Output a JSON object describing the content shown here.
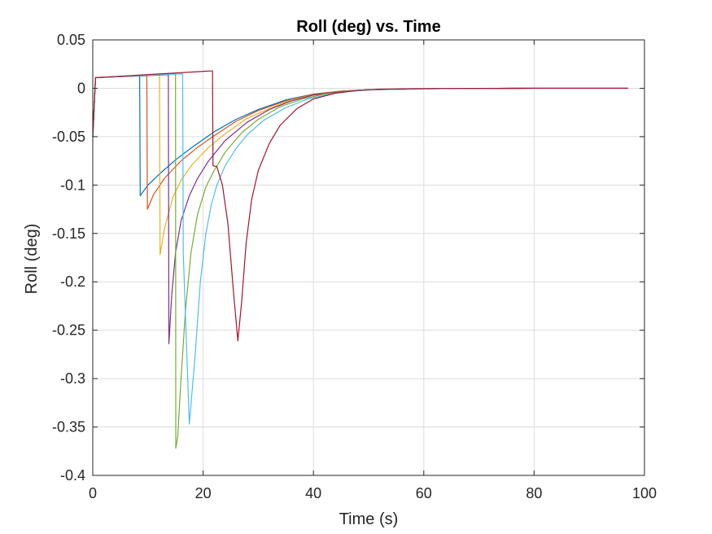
{
  "chart_data": {
    "type": "line",
    "title": "Roll (deg) vs. Time",
    "xlabel": "Time (s)",
    "ylabel": "Roll (deg)",
    "xlim": [
      0,
      100
    ],
    "ylim": [
      -0.4,
      0.05
    ],
    "xticks": [
      0,
      20,
      40,
      60,
      80,
      100
    ],
    "xtick_labels": [
      "0",
      "20",
      "40",
      "60",
      "80",
      "100"
    ],
    "yticks": [
      0.05,
      0,
      -0.05,
      -0.1,
      -0.15,
      -0.2,
      -0.25,
      -0.3,
      -0.35,
      -0.4
    ],
    "ytick_labels": [
      "0.05",
      "0",
      "-0.05",
      "-0.1",
      "-0.15",
      "-0.2",
      "-0.25",
      "-0.3",
      "-0.35",
      "-0.4"
    ],
    "grid": true,
    "series": [
      {
        "color": "#0072BD",
        "x": [
          0,
          0.5,
          8.5,
          8.6,
          10,
          12,
          15,
          18,
          22,
          26,
          30,
          35,
          40,
          45,
          50,
          60,
          70,
          80,
          90,
          97
        ],
        "y": [
          -0.05,
          0.011,
          0.013,
          -0.111,
          -0.1,
          -0.089,
          -0.074,
          -0.061,
          -0.045,
          -0.032,
          -0.022,
          -0.012,
          -0.006,
          -0.003,
          -0.0015,
          -0.0005,
          -0.0002,
          0,
          0,
          0
        ]
      },
      {
        "color": "#D95319",
        "x": [
          0,
          0.5,
          9.8,
          9.9,
          11,
          13,
          16,
          19,
          22,
          26,
          30,
          35,
          40,
          45,
          50,
          60,
          70,
          80,
          90,
          97
        ],
        "y": [
          -0.05,
          0.011,
          0.013,
          -0.125,
          -0.11,
          -0.093,
          -0.075,
          -0.061,
          -0.049,
          -0.034,
          -0.023,
          -0.013,
          -0.006,
          -0.003,
          -0.0015,
          -0.0005,
          -0.0002,
          0,
          0,
          0
        ]
      },
      {
        "color": "#EDB120",
        "x": [
          0,
          0.5,
          12.1,
          12.2,
          13,
          14.5,
          16,
          18,
          21,
          24,
          28,
          32,
          36,
          40,
          45,
          50,
          60,
          70,
          80,
          90,
          97
        ],
        "y": [
          -0.05,
          0.011,
          0.014,
          -0.172,
          -0.145,
          -0.113,
          -0.095,
          -0.079,
          -0.061,
          -0.047,
          -0.031,
          -0.021,
          -0.012,
          -0.007,
          -0.0035,
          -0.0015,
          -0.0005,
          -0.0002,
          0,
          0,
          0
        ]
      },
      {
        "color": "#7E2F8E",
        "x": [
          0,
          0.5,
          13.7,
          13.8,
          14.3,
          15,
          16,
          17.5,
          19,
          21,
          24,
          28,
          32,
          36,
          40,
          45,
          50,
          60,
          70,
          80,
          90,
          97
        ],
        "y": [
          -0.05,
          0.011,
          0.014,
          -0.264,
          -0.215,
          -0.17,
          -0.137,
          -0.111,
          -0.093,
          -0.075,
          -0.054,
          -0.035,
          -0.022,
          -0.013,
          -0.007,
          -0.0035,
          -0.0015,
          -0.0005,
          -0.0002,
          0,
          0,
          0
        ]
      },
      {
        "color": "#77AC30",
        "x": [
          0,
          0.5,
          15,
          15.05,
          15.4,
          16,
          16.8,
          17.8,
          19,
          20.5,
          22,
          24,
          27,
          30,
          34,
          38,
          42,
          46,
          50,
          60,
          70,
          80,
          90,
          97
        ],
        "y": [
          -0.05,
          0.011,
          0.015,
          -0.372,
          -0.36,
          -0.3,
          -0.23,
          -0.17,
          -0.13,
          -0.102,
          -0.085,
          -0.066,
          -0.046,
          -0.032,
          -0.019,
          -0.011,
          -0.006,
          -0.0032,
          -0.0016,
          -0.0005,
          -0.0002,
          0,
          0,
          0
        ]
      },
      {
        "color": "#4DBEEE",
        "x": [
          0,
          0.5,
          16.3,
          16.4,
          17.5,
          18.5,
          19.5,
          20.5,
          21.5,
          22.5,
          24,
          26,
          28,
          31,
          35,
          39,
          43,
          47,
          51,
          60,
          70,
          80,
          90,
          97
        ],
        "y": [
          -0.05,
          0.011,
          0.015,
          -0.17,
          -0.347,
          -0.28,
          -0.2,
          -0.15,
          -0.12,
          -0.1,
          -0.08,
          -0.062,
          -0.048,
          -0.033,
          -0.02,
          -0.011,
          -0.006,
          -0.003,
          -0.0015,
          -0.0005,
          -0.0002,
          0,
          0,
          0
        ]
      },
      {
        "color": "#A2142F",
        "x": [
          0,
          0.5,
          21.7,
          21.8,
          22.5,
          23.5,
          24.5,
          25.5,
          26.3,
          27,
          27.8,
          28.8,
          30,
          32,
          34,
          37,
          40,
          44,
          48,
          52,
          60,
          70,
          80,
          90,
          97
        ],
        "y": [
          -0.05,
          0.011,
          0.018,
          -0.08,
          -0.081,
          -0.1,
          -0.14,
          -0.21,
          -0.261,
          -0.22,
          -0.16,
          -0.115,
          -0.085,
          -0.057,
          -0.038,
          -0.021,
          -0.011,
          -0.005,
          -0.0022,
          -0.001,
          -0.0003,
          -0.0001,
          0,
          0,
          0
        ]
      }
    ]
  }
}
